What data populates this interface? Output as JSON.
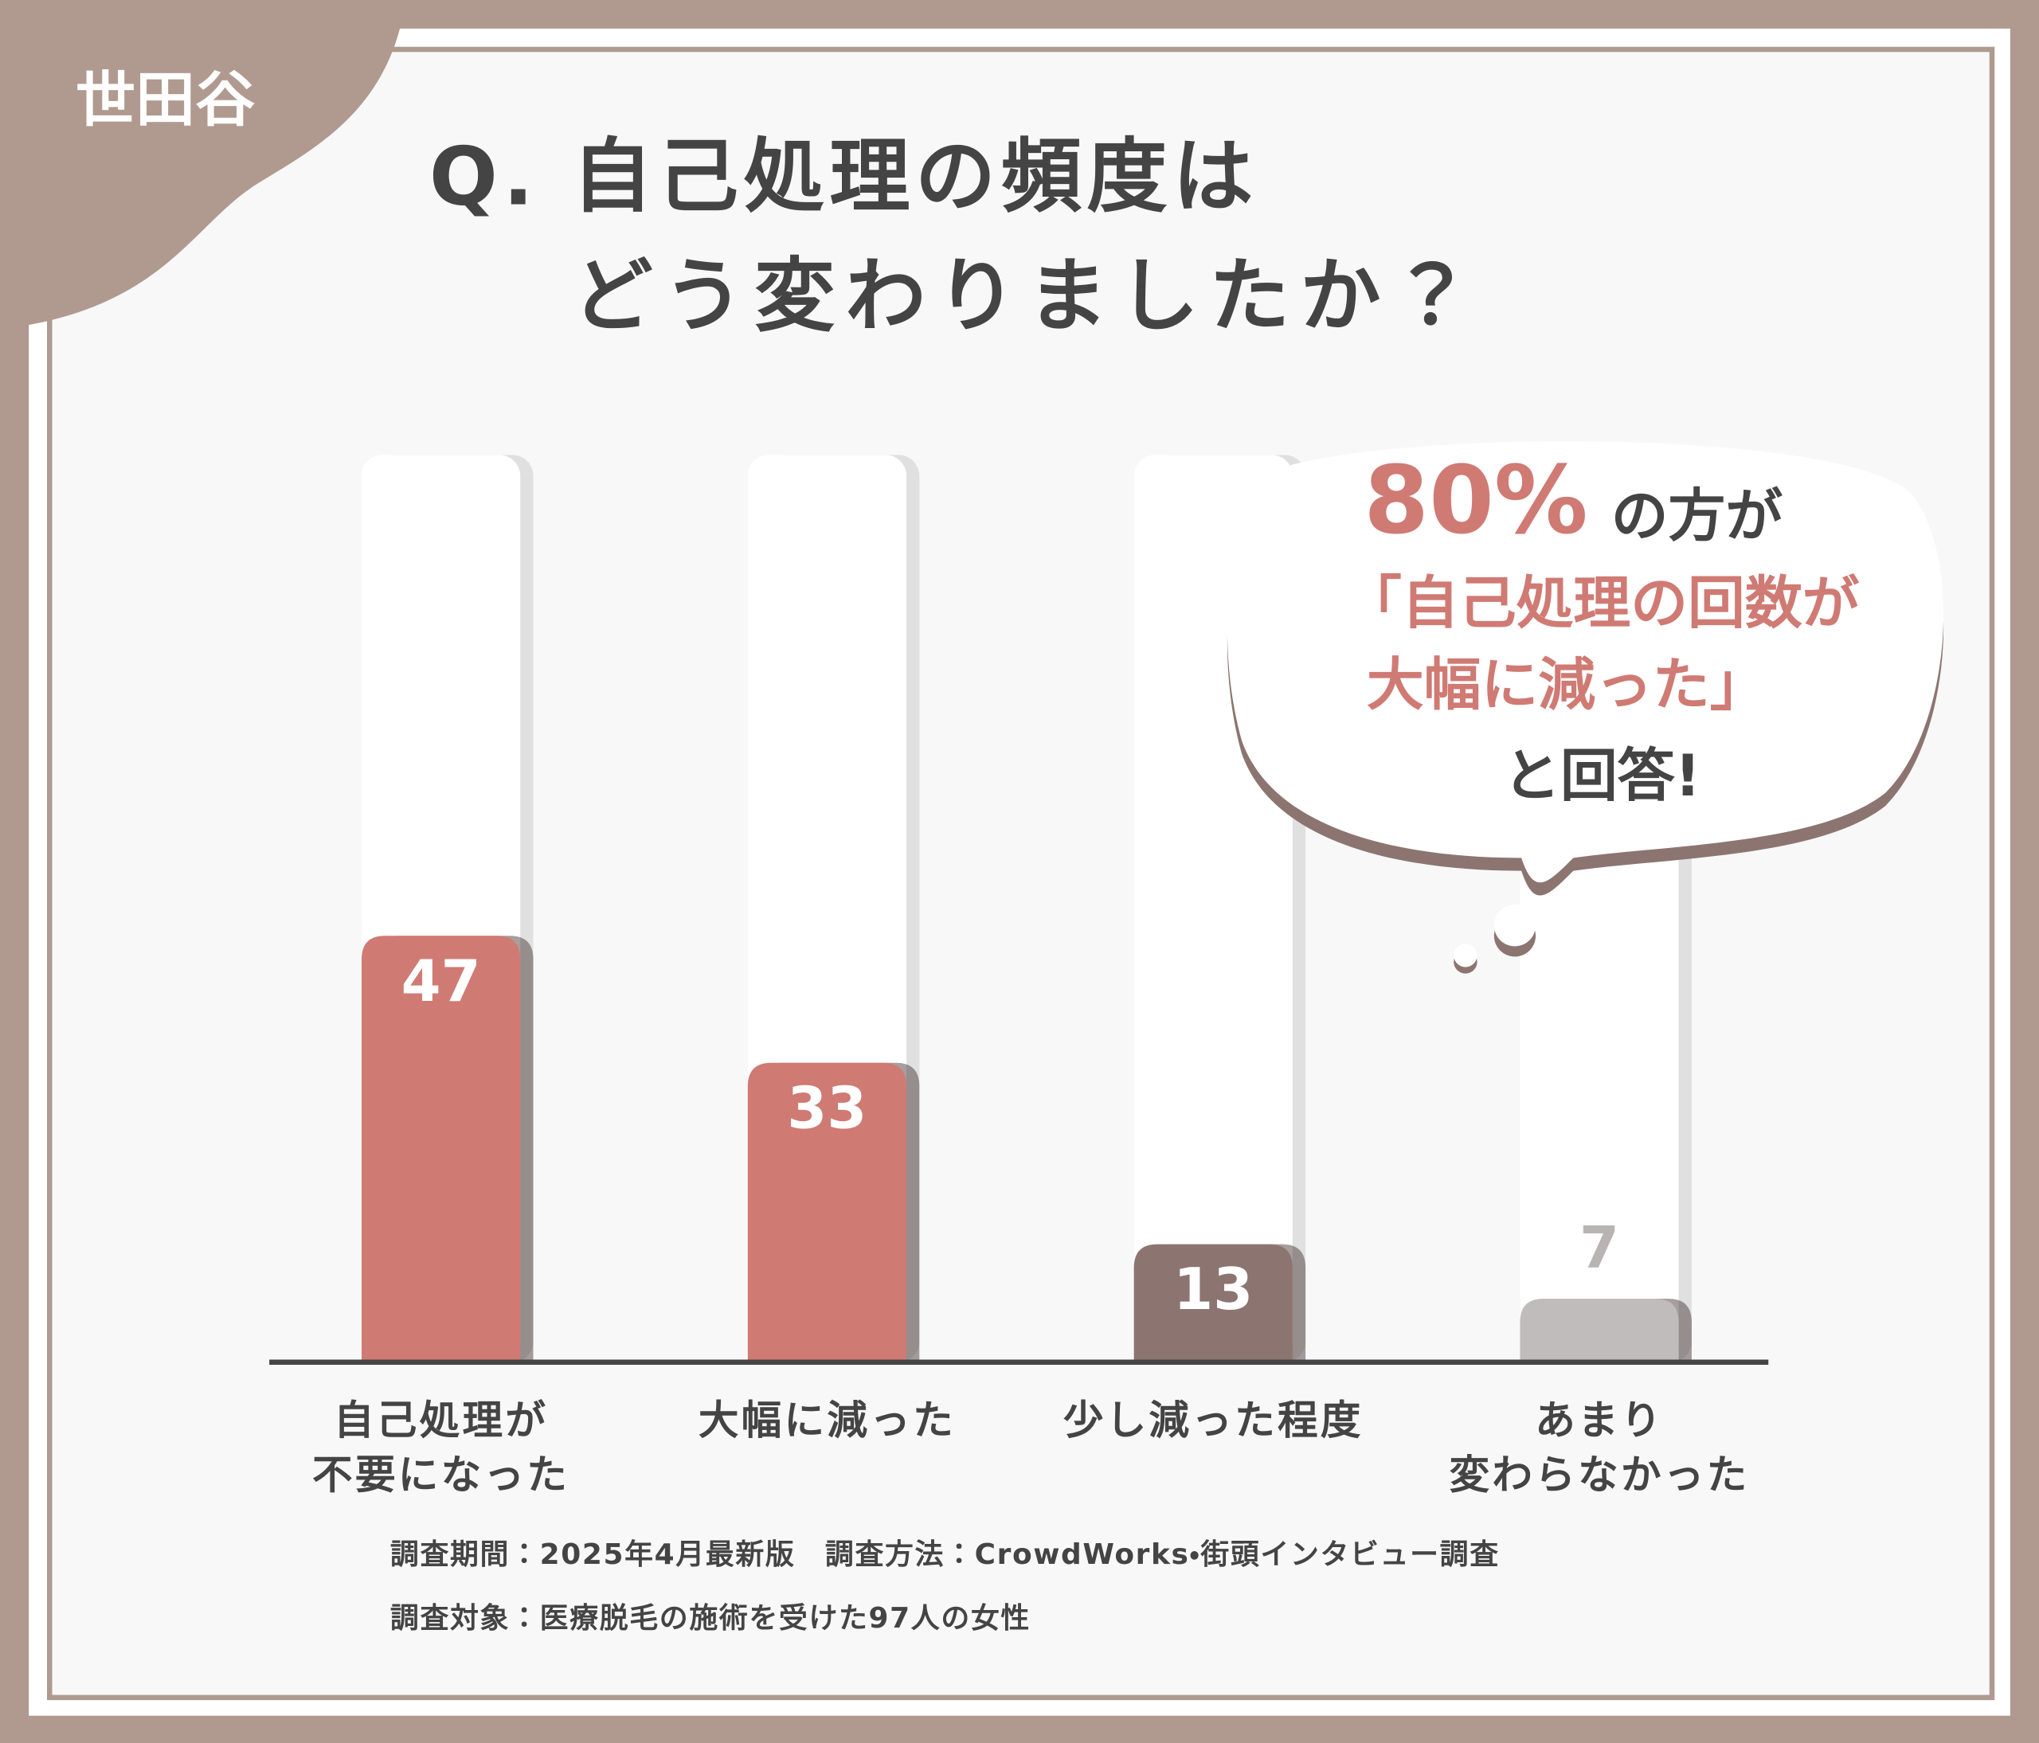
{
  "badge": "世田谷",
  "chart_data": {
    "type": "bar",
    "title": [
      "Q. 自己処理の頻度は",
      "どう変わりましたか？"
    ],
    "categories": [
      [
        "自己処理が",
        "不要になった"
      ],
      [
        "大幅に減った"
      ],
      [
        "少し減った程度"
      ],
      [
        "あまり",
        "変わらなかった"
      ]
    ],
    "values": [
      47,
      33,
      13,
      7
    ],
    "colors": [
      "#d07a74",
      "#d07a74",
      "#8c7570",
      "#c0bcbb"
    ],
    "label_colors": [
      "#ffffff",
      "#ffffff",
      "#ffffff",
      "#b8b4b3"
    ],
    "ylim": [
      0,
      100
    ],
    "callout": {
      "highlight": "80%",
      "lines": [
        "の方が",
        "「自己処理の回数が",
        "大幅に減った」",
        "と回答!"
      ]
    },
    "notes": [
      "調査期間：2025年4月最新版　調査方法：CrowdWorks・街頭インタビュー調査",
      "調査対象：医療脱毛の施術を受けた97人の女性"
    ]
  }
}
